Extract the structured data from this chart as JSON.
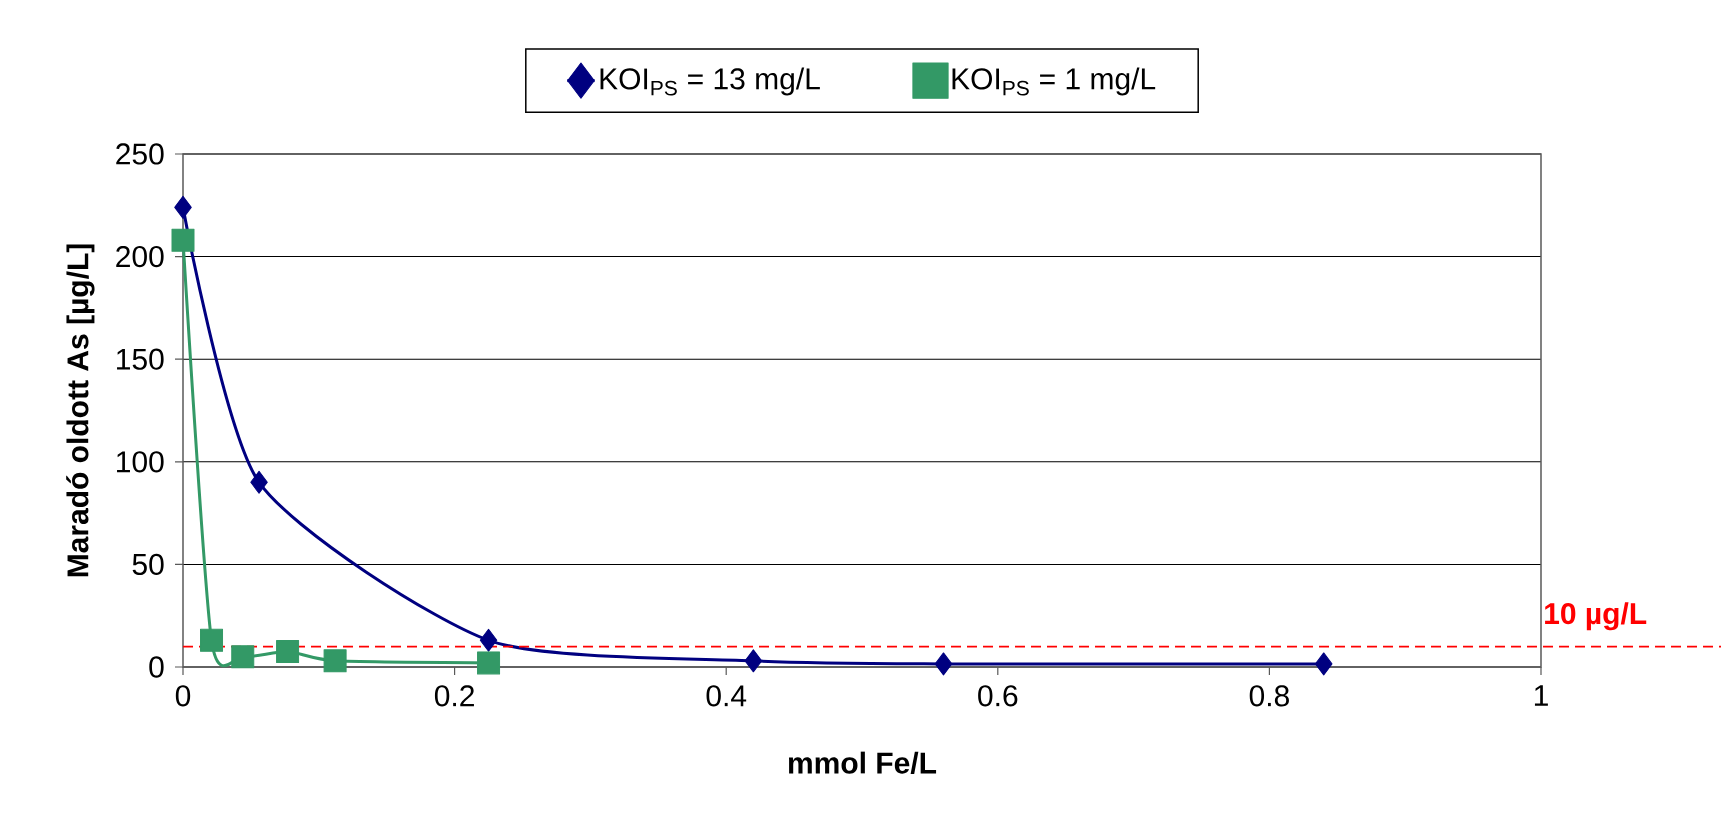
{
  "chart_data": {
    "type": "line",
    "xlabel": "mmol Fe/L",
    "ylabel": "Maradó oldott As [µg/L]",
    "xlim": [
      0,
      1
    ],
    "xticks": [
      0,
      0.2,
      0.4,
      0.6,
      0.8,
      1
    ],
    "ylim": [
      0,
      250
    ],
    "yticks": [
      0,
      50,
      100,
      150,
      200,
      250
    ],
    "grid": "y",
    "legend": "top",
    "series": [
      {
        "name": "KOI$_{PS}$ = 13 mg/L",
        "color": "#000080",
        "marker": "diamond",
        "x": [
          0,
          0.056,
          0.225,
          0.42,
          0.56,
          0.84
        ],
        "values": [
          224,
          90,
          13,
          3,
          1.5,
          1.5
        ]
      },
      {
        "name": "KOI$_{PS}$ = 1 mg/L",
        "color": "#339966",
        "marker": "square",
        "x": [
          0,
          0.021,
          0.044,
          0.077,
          0.112,
          0.225
        ],
        "values": [
          208,
          13,
          5,
          7.5,
          3,
          2
        ]
      }
    ],
    "ref_lines": [
      {
        "axis": "y",
        "value": 10,
        "label": "10 µg/L",
        "color": "#ff0000",
        "line_style": "dashed"
      }
    ]
  }
}
